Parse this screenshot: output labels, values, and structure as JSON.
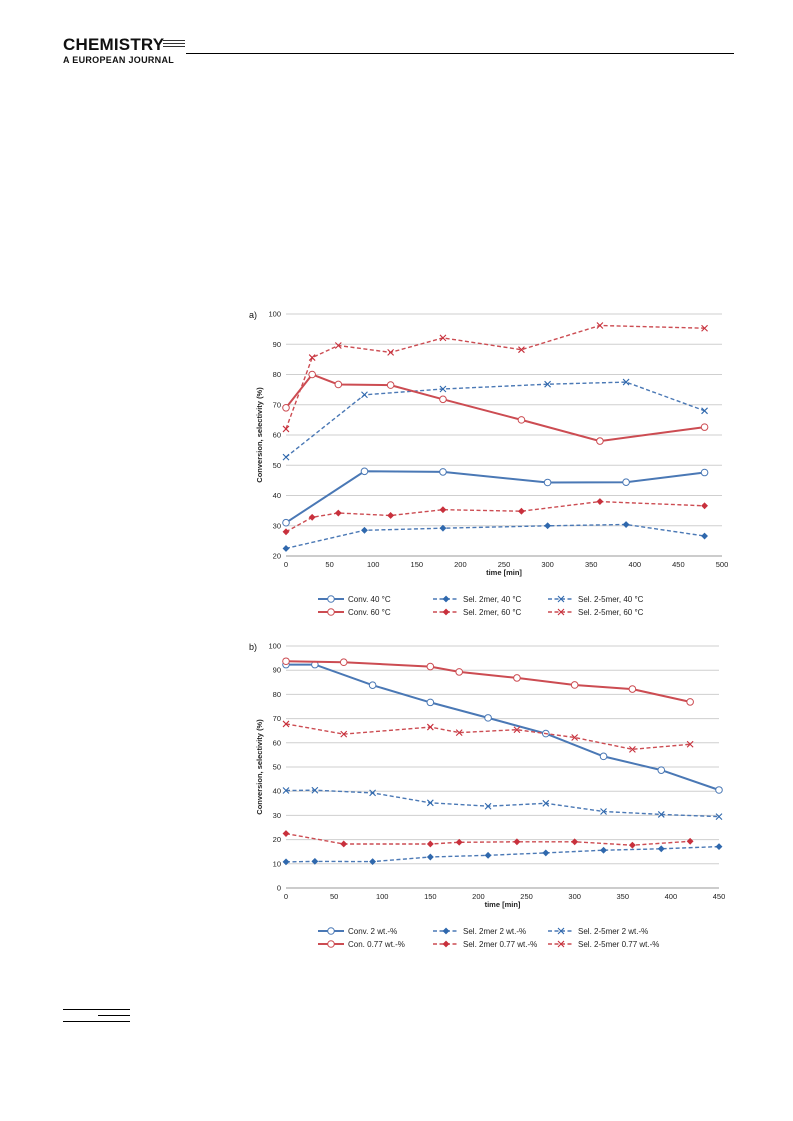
{
  "header": {
    "journal_title": "CHEMISTRY",
    "journal_subtitle": "A EUROPEAN JOURNAL"
  },
  "colors": {
    "blue": "#4a78b5",
    "red": "#cc4c52",
    "blue_marker": "#2f68ad",
    "red_marker": "#c8303c",
    "grid": "#cfcfcf"
  },
  "chart_data": [
    {
      "panel_label": "a)",
      "type": "line",
      "xlabel": "time [min]",
      "ylabel": "Conversion, selectivity (%)",
      "xlim": [
        0,
        500
      ],
      "ylim": [
        20,
        100
      ],
      "x_ticks": [
        0,
        50,
        100,
        150,
        200,
        250,
        300,
        350,
        400,
        450,
        500
      ],
      "y_ticks": [
        20,
        30,
        40,
        50,
        60,
        70,
        80,
        90,
        100
      ],
      "grid": true,
      "legend_position": "bottom",
      "series": [
        {
          "name": "Conv. 40 °C",
          "color": "blue",
          "dash": "solid",
          "marker": "circle",
          "points": [
            [
              0,
              31
            ],
            [
              90,
              48
            ],
            [
              180,
              47.8
            ],
            [
              300,
              44.3
            ],
            [
              390,
              44.4
            ],
            [
              480,
              47.6
            ]
          ]
        },
        {
          "name": "Sel. 2mer, 40 °C",
          "color": "blue",
          "dash": "dashed",
          "marker": "diamond",
          "points": [
            [
              0,
              22.5
            ],
            [
              90,
              28.5
            ],
            [
              180,
              29.2
            ],
            [
              300,
              30
            ],
            [
              390,
              30.4
            ],
            [
              480,
              26.6
            ]
          ]
        },
        {
          "name": "Sel. 2-5mer, 40 °C",
          "color": "blue",
          "dash": "dashed",
          "marker": "x",
          "points": [
            [
              0,
              52.7
            ],
            [
              90,
              73.3
            ],
            [
              180,
              75.2
            ],
            [
              300,
              76.8
            ],
            [
              390,
              77.5
            ],
            [
              480,
              68
            ]
          ]
        },
        {
          "name": "Conv. 60 °C",
          "color": "red",
          "dash": "solid",
          "marker": "circle",
          "points": [
            [
              0,
              69
            ],
            [
              30,
              80
            ],
            [
              60,
              76.7
            ],
            [
              120,
              76.5
            ],
            [
              180,
              71.8
            ],
            [
              270,
              65
            ],
            [
              360,
              58
            ],
            [
              480,
              62.6
            ]
          ]
        },
        {
          "name": "Sel. 2mer, 60 °C",
          "color": "red",
          "dash": "dashed",
          "marker": "diamond",
          "points": [
            [
              0,
              28
            ],
            [
              30,
              32.8
            ],
            [
              60,
              34.2
            ],
            [
              120,
              33.4
            ],
            [
              180,
              35.3
            ],
            [
              270,
              34.8
            ],
            [
              360,
              38
            ],
            [
              480,
              36.6
            ]
          ]
        },
        {
          "name": "Sel. 2-5mer, 60 °C",
          "color": "red",
          "dash": "dashed",
          "marker": "x",
          "points": [
            [
              0,
              62
            ],
            [
              30,
              85.6
            ],
            [
              60,
              89.6
            ],
            [
              120,
              87.3
            ],
            [
              180,
              92.1
            ],
            [
              270,
              88.2
            ],
            [
              360,
              96.2
            ],
            [
              480,
              95.3
            ]
          ]
        }
      ]
    },
    {
      "panel_label": "b)",
      "type": "line",
      "xlabel": "time [min]",
      "ylabel": "Conversion, selectivity (%)",
      "xlim": [
        0,
        450
      ],
      "ylim": [
        0,
        100
      ],
      "x_ticks": [
        0,
        50,
        100,
        150,
        200,
        250,
        300,
        350,
        400,
        450
      ],
      "y_ticks": [
        0,
        10,
        20,
        30,
        40,
        50,
        60,
        70,
        80,
        90,
        100
      ],
      "grid": true,
      "legend_position": "bottom",
      "series": [
        {
          "name": "Conv. 2 wt.-%",
          "color": "blue",
          "dash": "solid",
          "marker": "circle",
          "points": [
            [
              0,
              92.3
            ],
            [
              30,
              92.3
            ],
            [
              90,
              83.8
            ],
            [
              150,
              76.7
            ],
            [
              210,
              70.3
            ],
            [
              270,
              63.8
            ],
            [
              330,
              54.4
            ],
            [
              390,
              48.7
            ],
            [
              450,
              40.5
            ]
          ]
        },
        {
          "name": "Sel. 2mer 2 wt.-%",
          "color": "blue",
          "dash": "dashed",
          "marker": "diamond",
          "points": [
            [
              0,
              10.8
            ],
            [
              30,
              11
            ],
            [
              90,
              10.9
            ],
            [
              150,
              12.8
            ],
            [
              210,
              13.5
            ],
            [
              270,
              14.5
            ],
            [
              330,
              15.6
            ],
            [
              390,
              16.2
            ],
            [
              450,
              17.1
            ]
          ]
        },
        {
          "name": "Sel. 2-5mer 2 wt.-%",
          "color": "blue",
          "dash": "dashed",
          "marker": "x",
          "points": [
            [
              0,
              40.3
            ],
            [
              30,
              40.4
            ],
            [
              90,
              39.3
            ],
            [
              150,
              35.2
            ],
            [
              210,
              33.8
            ],
            [
              270,
              35
            ],
            [
              330,
              31.6
            ],
            [
              390,
              30.4
            ],
            [
              450,
              29.5
            ]
          ]
        },
        {
          "name": "Con. 0.77 wt.-%",
          "color": "red",
          "dash": "solid",
          "marker": "circle",
          "points": [
            [
              0,
              93.7
            ],
            [
              60,
              93.3
            ],
            [
              150,
              91.5
            ],
            [
              180,
              89.3
            ],
            [
              240,
              86.8
            ],
            [
              300,
              83.9
            ],
            [
              360,
              82.2
            ],
            [
              420,
              76.9
            ]
          ]
        },
        {
          "name": "Sel. 2mer 0.77 wt.-%",
          "color": "red",
          "dash": "dashed",
          "marker": "diamond",
          "points": [
            [
              0,
              22.5
            ],
            [
              60,
              18.2
            ],
            [
              150,
              18.2
            ],
            [
              180,
              18.9
            ],
            [
              240,
              19.1
            ],
            [
              300,
              19.1
            ],
            [
              360,
              17.7
            ],
            [
              420,
              19.3
            ]
          ]
        },
        {
          "name": "Sel. 2-5mer 0.77 wt.-%",
          "color": "red",
          "dash": "dashed",
          "marker": "x",
          "points": [
            [
              0,
              67.8
            ],
            [
              60,
              63.6
            ],
            [
              150,
              66.5
            ],
            [
              180,
              64.2
            ],
            [
              240,
              65.4
            ],
            [
              300,
              62.2
            ],
            [
              360,
              57.3
            ],
            [
              420,
              59.4
            ]
          ]
        }
      ]
    }
  ]
}
